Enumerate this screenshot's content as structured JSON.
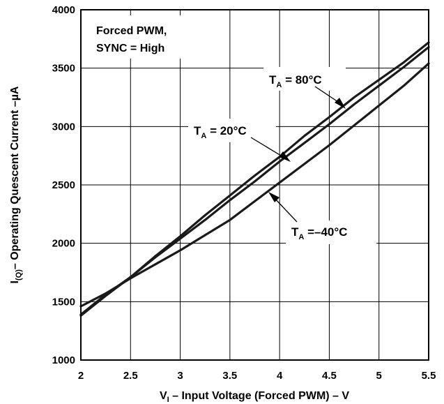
{
  "chart_data": {
    "type": "line",
    "title": "",
    "xlabel": {
      "main": "V",
      "sub": "I",
      "rest": " – Input Voltage (Forced PWM) – V"
    },
    "ylabel": {
      "main": "I",
      "sub": "(Q)",
      "rest": "– Operating Quescent Current –µA"
    },
    "xlim": [
      2,
      5.5
    ],
    "ylim": [
      1000,
      4000
    ],
    "x_ticks": [
      "2",
      "2.5",
      "3",
      "3.5",
      "4",
      "4.5",
      "5",
      "5.5"
    ],
    "y_ticks": [
      "1000",
      "1500",
      "2000",
      "2500",
      "3000",
      "3500",
      "4000"
    ],
    "grid": true,
    "condition_note": [
      "Forced PWM,",
      "SYNC = High"
    ],
    "series": [
      {
        "label": {
          "main": "T",
          "sub": "A",
          "rest": " = 80°C"
        },
        "x": [
          2.0,
          2.25,
          2.5,
          2.75,
          3.0,
          3.25,
          3.5,
          3.75,
          4.0,
          4.25,
          4.5,
          4.75,
          5.0,
          5.25,
          5.5
        ],
        "y": [
          1390,
          1560,
          1710,
          1890,
          2060,
          2240,
          2410,
          2580,
          2740,
          2920,
          3080,
          3250,
          3400,
          3550,
          3720
        ]
      },
      {
        "label": {
          "main": "T",
          "sub": "A",
          "rest": " = 20°C"
        },
        "x": [
          2.0,
          2.25,
          2.5,
          2.75,
          3.0,
          3.25,
          3.5,
          3.75,
          4.0,
          4.25,
          4.5,
          4.75,
          5.0,
          5.25,
          5.5
        ],
        "y": [
          1380,
          1550,
          1710,
          1880,
          2040,
          2200,
          2370,
          2530,
          2700,
          2860,
          3020,
          3190,
          3350,
          3510,
          3680
        ]
      },
      {
        "label": {
          "main": "T",
          "sub": "A",
          "rest": " =–40°C"
        },
        "x": [
          2.0,
          2.25,
          2.5,
          2.75,
          3.0,
          3.25,
          3.5,
          3.75,
          4.0,
          4.25,
          4.5,
          4.75,
          5.0,
          5.25,
          5.5
        ],
        "y": [
          1460,
          1570,
          1700,
          1820,
          1940,
          2070,
          2200,
          2360,
          2520,
          2680,
          2840,
          3010,
          3180,
          3350,
          3540
        ]
      }
    ]
  }
}
